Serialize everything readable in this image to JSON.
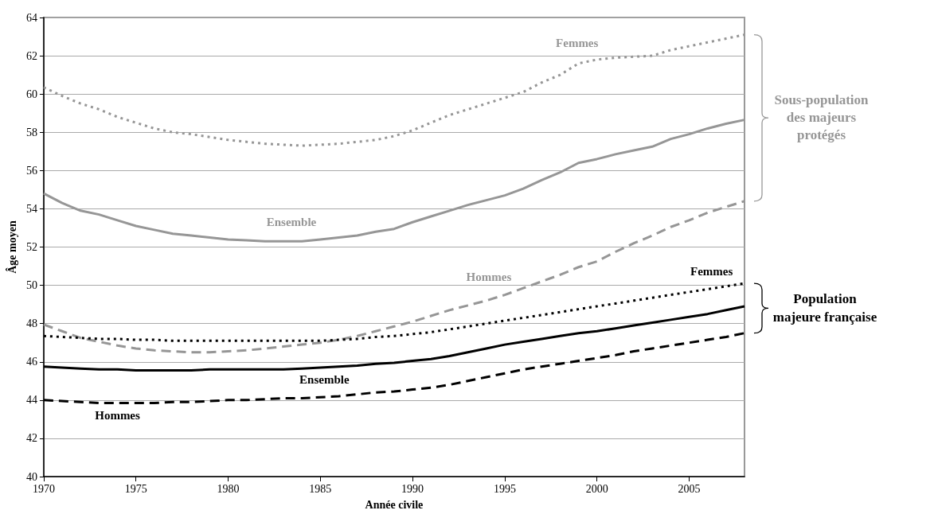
{
  "chart_data": {
    "type": "line",
    "xlabel": "Année civile",
    "ylabel": "Âge moyen",
    "x": [
      1970,
      1971,
      1972,
      1973,
      1974,
      1975,
      1976,
      1977,
      1978,
      1979,
      1980,
      1981,
      1982,
      1983,
      1984,
      1985,
      1986,
      1987,
      1988,
      1989,
      1990,
      1991,
      1992,
      1993,
      1994,
      1995,
      1996,
      1997,
      1998,
      1999,
      2000,
      2001,
      2002,
      2003,
      2004,
      2005,
      2006,
      2007,
      2008
    ],
    "series": [
      {
        "name": "Femmes",
        "color": "#969696",
        "line_style": "dotted",
        "values": [
          60.35,
          59.9,
          59.5,
          59.2,
          58.8,
          58.5,
          58.2,
          58.0,
          57.9,
          57.75,
          57.6,
          57.5,
          57.4,
          57.35,
          57.3,
          57.35,
          57.4,
          57.5,
          57.6,
          57.8,
          58.1,
          58.5,
          58.9,
          59.2,
          59.5,
          59.8,
          60.1,
          60.6,
          61.0,
          61.6,
          61.8,
          61.9,
          61.95,
          62.0,
          62.3,
          62.5,
          62.7,
          62.9,
          63.1
        ]
      },
      {
        "name": "Ensemble",
        "color": "#969696",
        "line_style": "solid",
        "values": [
          54.8,
          54.3,
          53.9,
          53.7,
          53.4,
          53.1,
          52.9,
          52.7,
          52.6,
          52.5,
          52.4,
          52.35,
          52.3,
          52.3,
          52.3,
          52.4,
          52.5,
          52.6,
          52.8,
          52.95,
          53.3,
          53.6,
          53.9,
          54.2,
          54.45,
          54.7,
          55.05,
          55.5,
          55.9,
          56.4,
          56.6,
          56.85,
          57.05,
          57.25,
          57.65,
          57.9,
          58.2,
          58.45,
          58.65
        ]
      },
      {
        "name": "Hommes",
        "color": "#969696",
        "line_style": "dashed",
        "values": [
          47.95,
          47.6,
          47.25,
          47.05,
          46.85,
          46.7,
          46.6,
          46.55,
          46.5,
          46.5,
          46.55,
          46.6,
          46.7,
          46.8,
          46.9,
          47.0,
          47.15,
          47.35,
          47.6,
          47.85,
          48.1,
          48.4,
          48.7,
          48.95,
          49.2,
          49.5,
          49.85,
          50.2,
          50.55,
          50.95,
          51.25,
          51.75,
          52.2,
          52.6,
          53.05,
          53.4,
          53.8,
          54.1,
          54.4
        ]
      },
      {
        "name": "Femmes",
        "color": "#000000",
        "line_style": "dotted",
        "values": [
          47.35,
          47.3,
          47.25,
          47.2,
          47.2,
          47.15,
          47.15,
          47.1,
          47.1,
          47.1,
          47.1,
          47.1,
          47.1,
          47.1,
          47.1,
          47.1,
          47.15,
          47.2,
          47.3,
          47.35,
          47.45,
          47.55,
          47.7,
          47.85,
          48.0,
          48.15,
          48.3,
          48.45,
          48.6,
          48.75,
          48.9,
          49.05,
          49.2,
          49.35,
          49.5,
          49.65,
          49.8,
          49.95,
          50.1
        ]
      },
      {
        "name": "Ensemble",
        "color": "#000000",
        "line_style": "solid",
        "values": [
          45.75,
          45.7,
          45.65,
          45.6,
          45.6,
          45.55,
          45.55,
          45.55,
          45.55,
          45.6,
          45.6,
          45.6,
          45.6,
          45.6,
          45.65,
          45.7,
          45.75,
          45.8,
          45.9,
          45.95,
          46.05,
          46.15,
          46.3,
          46.5,
          46.7,
          46.9,
          47.05,
          47.2,
          47.35,
          47.5,
          47.6,
          47.75,
          47.9,
          48.05,
          48.2,
          48.35,
          48.5,
          48.7,
          48.9
        ]
      },
      {
        "name": "Hommes",
        "color": "#000000",
        "line_style": "dashed",
        "values": [
          44.0,
          43.95,
          43.9,
          43.85,
          43.85,
          43.85,
          43.85,
          43.9,
          43.9,
          43.95,
          44.0,
          44.0,
          44.05,
          44.1,
          44.1,
          44.15,
          44.2,
          44.3,
          44.4,
          44.45,
          44.55,
          44.65,
          44.8,
          45.0,
          45.2,
          45.4,
          45.6,
          45.75,
          45.9,
          46.05,
          46.2,
          46.35,
          46.55,
          46.7,
          46.85,
          47.0,
          47.15,
          47.3,
          47.5
        ]
      }
    ],
    "xlim": [
      1970,
      2008
    ],
    "xticks": [
      1970,
      1975,
      1980,
      1985,
      1990,
      1995,
      2000,
      2005
    ],
    "ylim": [
      40,
      64
    ],
    "yticks": [
      40,
      42,
      44,
      46,
      48,
      50,
      52,
      54,
      56,
      58,
      60,
      62,
      64
    ],
    "annotations": [
      "Sous-population des majeurs protégés",
      "Population majeure française"
    ],
    "grid": "y",
    "legend": false,
    "marker": "none"
  }
}
